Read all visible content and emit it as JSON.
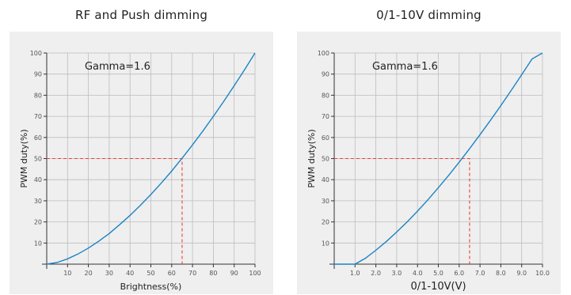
{
  "chart_data": [
    {
      "type": "line",
      "title": "RF and Push dimming",
      "xlabel": "Brightness(%)",
      "ylabel": "PWM duty(%)",
      "xlim": [
        0,
        100
      ],
      "ylim": [
        0,
        100
      ],
      "grid": true,
      "xticks": [
        "10",
        "20",
        "30",
        "40",
        "50",
        "60",
        "70",
        "80",
        "90",
        "100"
      ],
      "yticks": [
        "10",
        "20",
        "30",
        "40",
        "50",
        "60",
        "70",
        "80",
        "90",
        "100"
      ],
      "annotation": "Gamma=1.6",
      "series": [
        {
          "x": [
            0,
            5,
            10,
            15,
            20,
            25,
            30,
            35,
            40,
            45,
            50,
            55,
            60,
            65,
            70,
            75,
            80,
            85,
            90,
            95,
            100
          ],
          "values": [
            0,
            0.8,
            2.5,
            4.8,
            7.6,
            10.9,
            14.5,
            18.7,
            23.1,
            27.9,
            33.0,
            38.4,
            44.1,
            50.2,
            56.5,
            63.1,
            70.0,
            77.1,
            84.5,
            92.1,
            100
          ]
        }
      ],
      "reference": {
        "x": 65,
        "y": 50
      }
    },
    {
      "type": "line",
      "title": "0/1-10V dimming",
      "xlabel": "0/1-10V(V)",
      "ylabel": "PWM duty(%)",
      "xlim": [
        0,
        10
      ],
      "ylim": [
        0,
        100
      ],
      "grid": true,
      "xticks": [
        "1.0",
        "2.0",
        "3.0",
        "4.0",
        "5.0",
        "6.0",
        "7.0",
        "8.0",
        "9.0",
        "10.0"
      ],
      "yticks": [
        "10",
        "20",
        "30",
        "40",
        "50",
        "60",
        "70",
        "80",
        "90",
        "100"
      ],
      "annotation": "Gamma=1.6",
      "series": [
        {
          "x": [
            0,
            1.0,
            1.5,
            2.0,
            2.5,
            3.0,
            3.5,
            4.0,
            4.5,
            5.0,
            5.5,
            6.0,
            6.5,
            7.0,
            7.5,
            8.0,
            8.5,
            9.0,
            9.5,
            10.0
          ],
          "values": [
            0,
            0,
            2.8,
            6.6,
            10.7,
            15.2,
            20.0,
            25.1,
            30.5,
            36.2,
            42.1,
            48.3,
            54.7,
            61.3,
            68.1,
            75.1,
            82.3,
            89.7,
            97.2,
            100
          ]
        }
      ],
      "reference": {
        "x": 6.5,
        "y": 50
      }
    }
  ]
}
